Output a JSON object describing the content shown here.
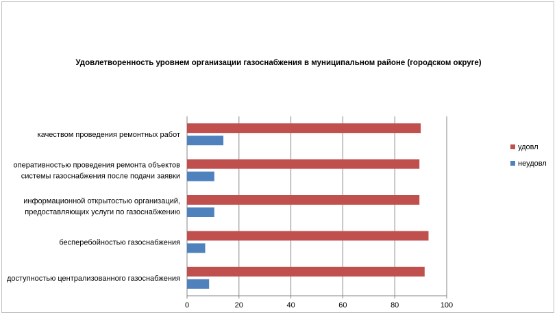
{
  "chart_data": {
    "type": "bar",
    "orientation": "horizontal",
    "title": "Удовлетворенность уровнем организации газоснабжения в муниципальном районе (городском округе)",
    "categories": [
      [
        "качеством проведения ремонтных работ"
      ],
      [
        "оперативностью проведения ремонта объектов",
        "системы газоснабжения после подачи заявки"
      ],
      [
        "информационной открытостью организаций,",
        "предоставляющих услуги по газоснабжению"
      ],
      [
        "бесперебойностью газоснабжения"
      ],
      [
        "доступностью централизованного газоснабжения"
      ]
    ],
    "series": [
      {
        "name": "удовл",
        "color": "#c0504d",
        "values": [
          90,
          89.5,
          89.5,
          93,
          91.5
        ]
      },
      {
        "name": "неудовл",
        "color": "#4f81bd",
        "values": [
          14,
          10.5,
          10.5,
          7,
          8.5
        ]
      }
    ],
    "xlim": [
      0,
      100
    ],
    "xticks": [
      0,
      20,
      40,
      60,
      80,
      100
    ],
    "grid": true,
    "legend": "right"
  }
}
